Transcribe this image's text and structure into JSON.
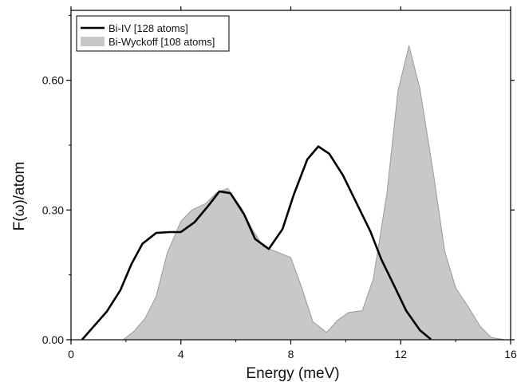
{
  "chart_data": {
    "type": "area",
    "xlabel": "Energy (meV)",
    "ylabel": "F(ω)/atom",
    "xlim": [
      0,
      16
    ],
    "ylim": [
      0,
      0.7617
    ],
    "xticks": [
      0,
      4,
      8,
      12,
      16
    ],
    "xtick_labels": [
      "0",
      "4",
      "8",
      "12",
      "16"
    ],
    "yticks": [
      0.0,
      0.3,
      0.6
    ],
    "ytick_labels": [
      "0.00",
      "0.30",
      "0.60"
    ],
    "grid": false,
    "legend": {
      "placement": "top-left",
      "entries": [
        "Bi-IV [128 atoms]",
        "Bi-Wyckoff [108 atoms]"
      ]
    },
    "series": [
      {
        "name": "Bi-IV [128 atoms]",
        "style": "line",
        "color": "#000000",
        "x": [
          0.4,
          1.3,
          1.8,
          2.2,
          2.6,
          3.1,
          3.6,
          4.0,
          4.5,
          5.0,
          5.4,
          5.8,
          6.3,
          6.7,
          7.2,
          7.7,
          8.1,
          8.6,
          9.0,
          9.4,
          9.9,
          10.4,
          10.9,
          11.3,
          11.8,
          12.2,
          12.7,
          13.1
        ],
        "y": [
          0.0,
          0.065,
          0.115,
          0.175,
          0.222,
          0.247,
          0.249,
          0.249,
          0.272,
          0.31,
          0.343,
          0.339,
          0.29,
          0.233,
          0.21,
          0.256,
          0.334,
          0.417,
          0.447,
          0.43,
          0.38,
          0.315,
          0.25,
          0.185,
          0.12,
          0.067,
          0.022,
          0.001
        ]
      },
      {
        "name": "Bi-Wyckoff [108 atoms]",
        "style": "area",
        "color": "#c8c8c8",
        "x": [
          1.9,
          2.3,
          2.7,
          3.1,
          3.5,
          4.0,
          4.4,
          4.9,
          5.3,
          5.7,
          6.2,
          6.6,
          7.0,
          7.5,
          8.0,
          8.4,
          8.8,
          9.3,
          9.7,
          10.1,
          10.6,
          11.0,
          11.5,
          11.9,
          12.3,
          12.7,
          13.2,
          13.6,
          14.0,
          14.5,
          14.9,
          15.3,
          15.8
        ],
        "y": [
          0.0,
          0.02,
          0.05,
          0.1,
          0.2,
          0.274,
          0.3,
          0.315,
          0.34,
          0.35,
          0.305,
          0.255,
          0.215,
          0.203,
          0.19,
          0.12,
          0.042,
          0.017,
          0.045,
          0.063,
          0.067,
          0.14,
          0.34,
          0.575,
          0.68,
          0.58,
          0.38,
          0.205,
          0.12,
          0.072,
          0.03,
          0.005,
          0.0
        ]
      }
    ]
  }
}
